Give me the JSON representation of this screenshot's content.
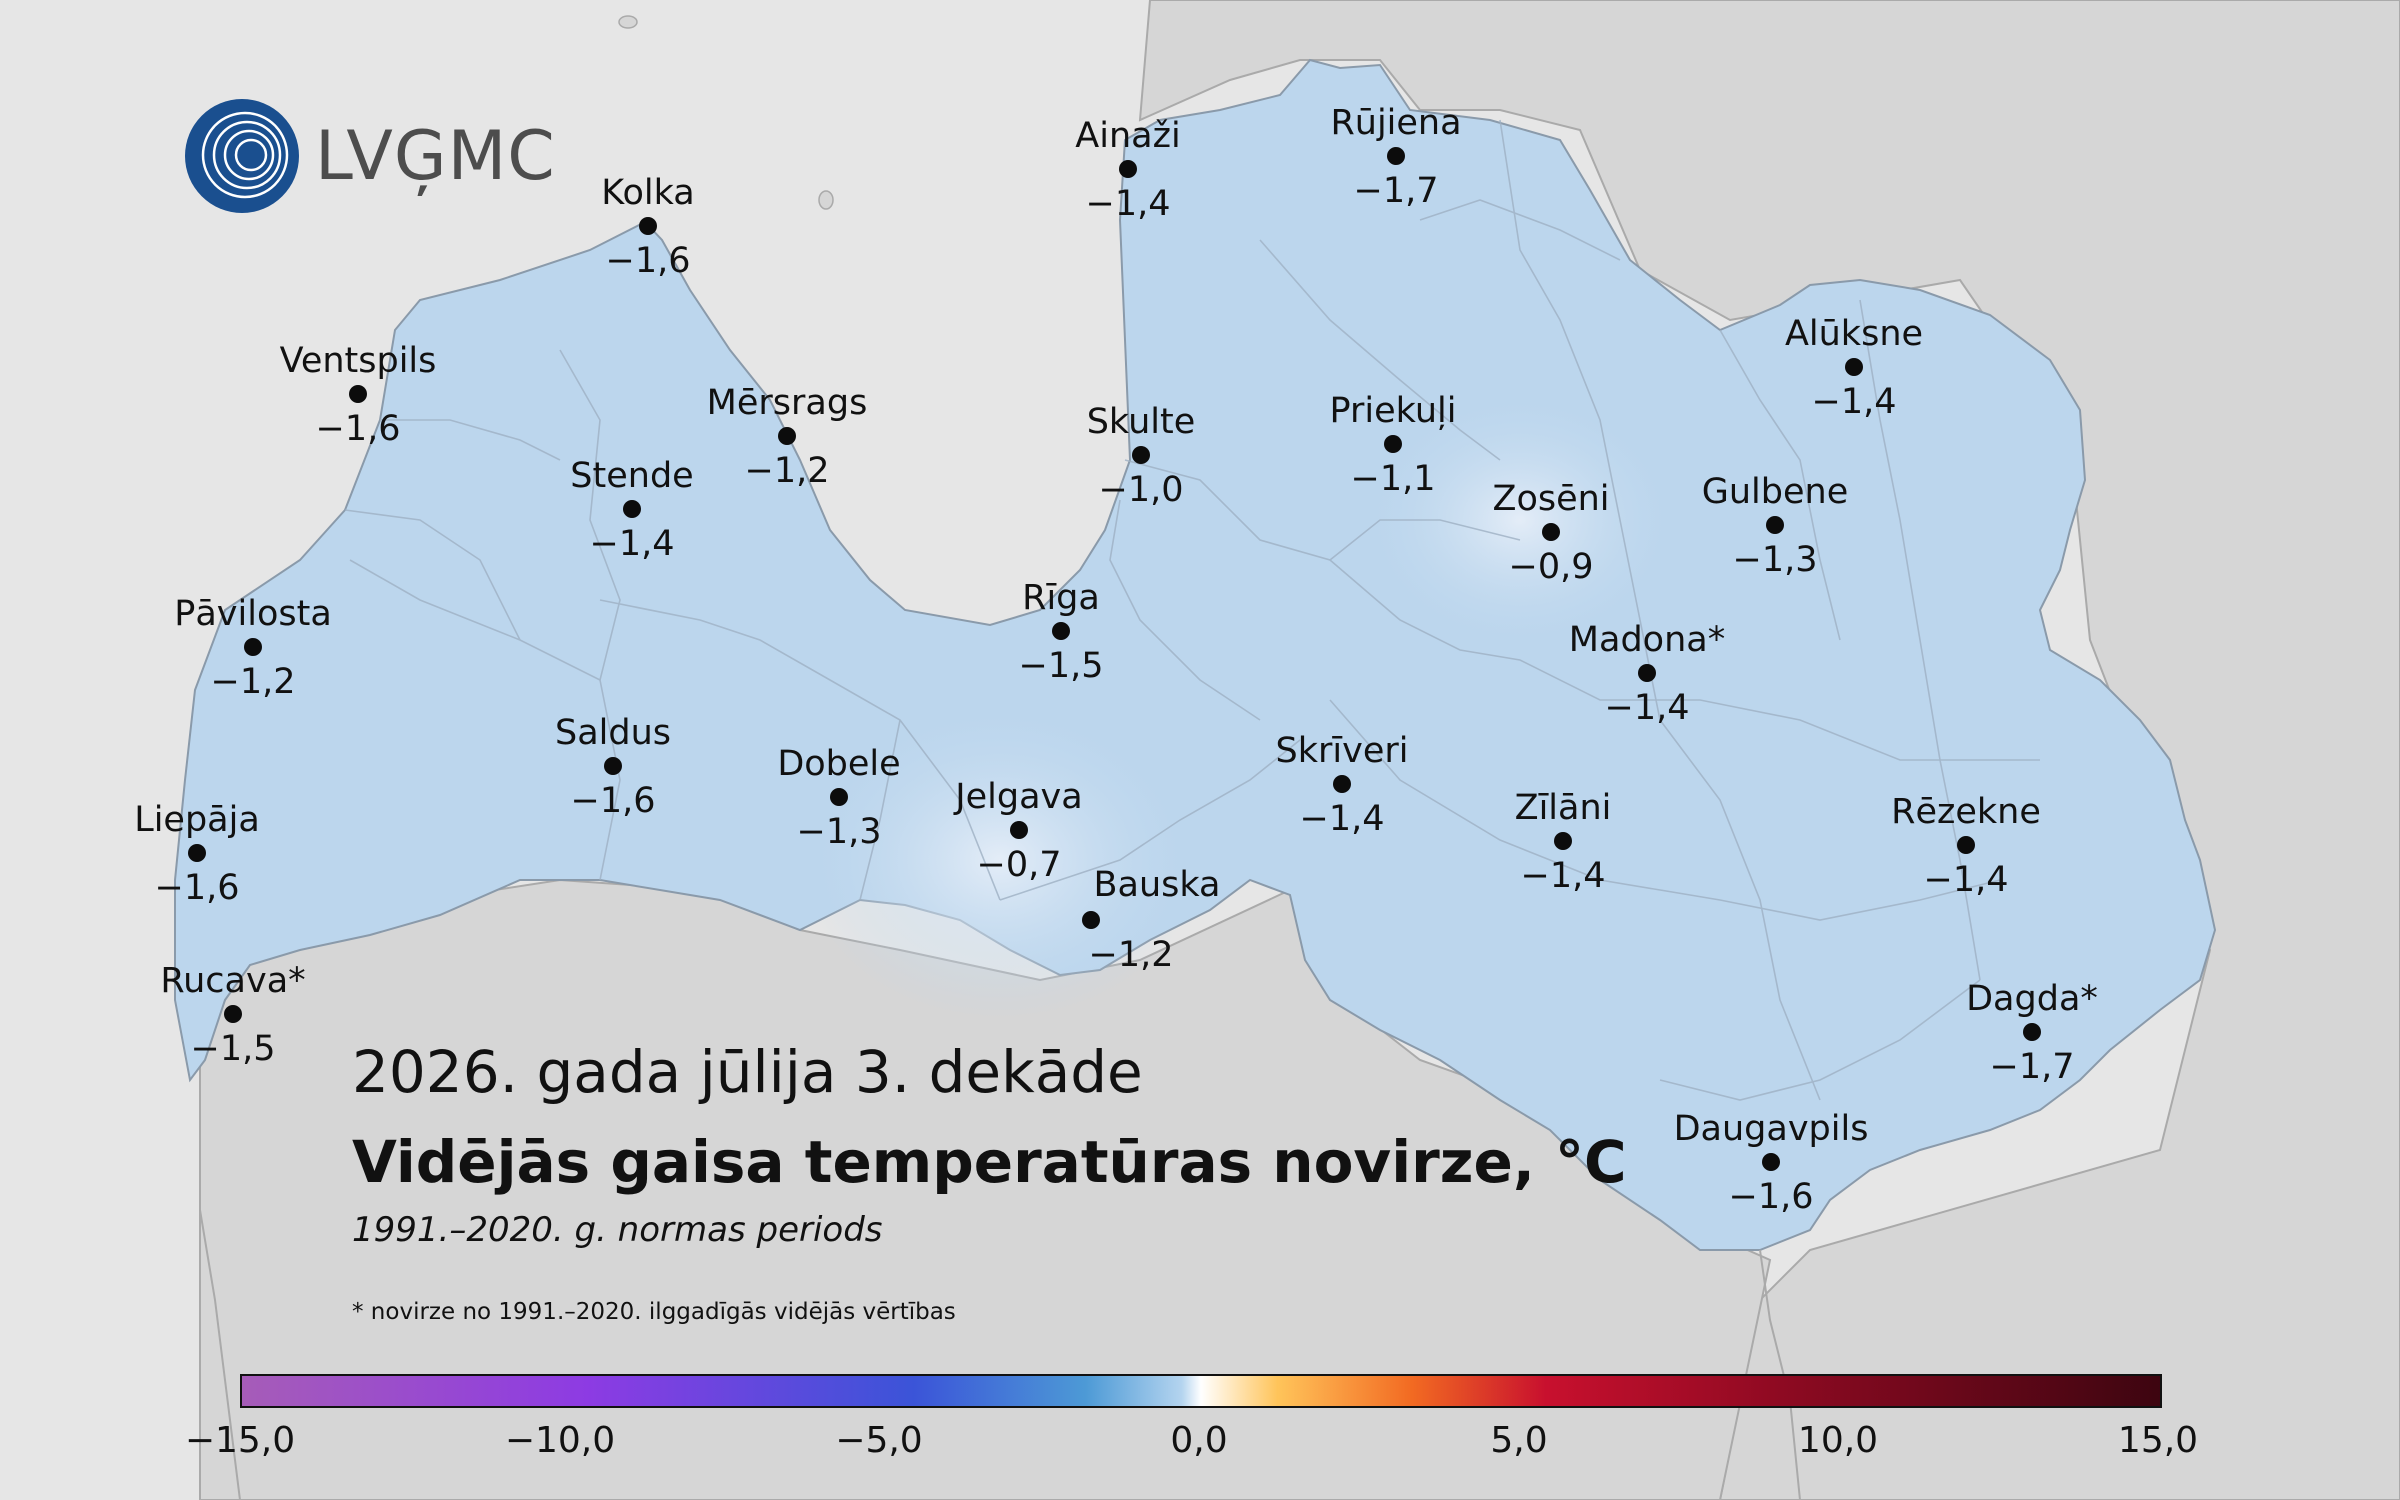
{
  "logo": {
    "text": "LVĢMC"
  },
  "title": {
    "period": "2026. gada jūlija 3. dekāde",
    "main": "Vidējās gaisa temperatūras novirze, °C",
    "subtitle": "1991.–2020. g. normas periods",
    "footnote": "* novirze no 1991.–2020. ilggadīgās vidējās vērtības"
  },
  "stations": [
    {
      "name": "Kolka",
      "value": "−1,6"
    },
    {
      "name": "Ventspils",
      "value": "−1,6"
    },
    {
      "name": "Mērsrags",
      "value": "−1,2"
    },
    {
      "name": "Stende",
      "value": "−1,4"
    },
    {
      "name": "Pāvilosta",
      "value": "−1,2"
    },
    {
      "name": "Saldus",
      "value": "−1,6"
    },
    {
      "name": "Dobele",
      "value": "−1,3"
    },
    {
      "name": "Liepāja",
      "value": "−1,6"
    },
    {
      "name": "Rucava*",
      "value": "−1,5"
    },
    {
      "name": "Jelgava",
      "value": "−0,7"
    },
    {
      "name": "Bauska",
      "value": "−1,2"
    },
    {
      "name": "Rīga",
      "value": "−1,5"
    },
    {
      "name": "Skulte",
      "value": "−1,0"
    },
    {
      "name": "Ainaži",
      "value": "−1,4"
    },
    {
      "name": "Rūjiena",
      "value": "−1,7"
    },
    {
      "name": "Priekuļi",
      "value": "−1,1"
    },
    {
      "name": "Zosēni",
      "value": "−0,9"
    },
    {
      "name": "Alūksne",
      "value": "−1,4"
    },
    {
      "name": "Gulbene",
      "value": "−1,3"
    },
    {
      "name": "Madona*",
      "value": "−1,4"
    },
    {
      "name": "Skrīveri",
      "value": "−1,4"
    },
    {
      "name": "Zīlāni",
      "value": "−1,4"
    },
    {
      "name": "Rēzekne",
      "value": "−1,4"
    },
    {
      "name": "Dagda*",
      "value": "−1,7"
    },
    {
      "name": "Daugavpils",
      "value": "−1,6"
    }
  ],
  "colorbar": {
    "min": -15,
    "max": 15,
    "ticks": [
      "−15,0",
      "−10,0",
      "−5,0",
      "0,0",
      "5,0",
      "10,0",
      "15,0"
    ]
  },
  "colors": {
    "sea": "#e6e6e6",
    "land": "#d6d6d6",
    "latvia": "#bcd6ed",
    "latvia_light": "#d2e3f4"
  }
}
